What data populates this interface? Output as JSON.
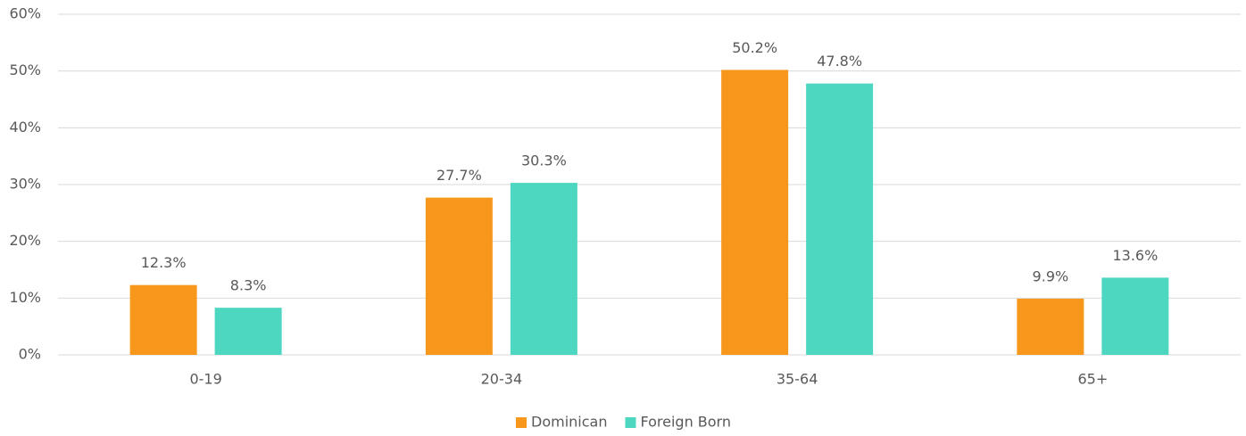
{
  "chart_data": {
    "type": "bar",
    "categories": [
      "0-19",
      "20-34",
      "35-64",
      "65+"
    ],
    "series": [
      {
        "name": "Dominican",
        "color": "#f7981d",
        "values": [
          12.3,
          27.7,
          50.2,
          9.9
        ],
        "value_labels": [
          "12.3%",
          "27.7%",
          "50.2%",
          "9.9%"
        ]
      },
      {
        "name": "Foreign Born",
        "color": "#4dd6c0",
        "values": [
          8.3,
          30.3,
          47.8,
          13.6
        ],
        "value_labels": [
          "8.3%",
          "30.3%",
          "47.8%",
          "13.6%"
        ]
      }
    ],
    "ylim": [
      0,
      60
    ],
    "yticks": [
      {
        "value": 0,
        "label": "0%"
      },
      {
        "value": 10,
        "label": "10%"
      },
      {
        "value": 20,
        "label": "20%"
      },
      {
        "value": 30,
        "label": "30%"
      },
      {
        "value": 40,
        "label": "40%"
      },
      {
        "value": 50,
        "label": "50%"
      },
      {
        "value": 60,
        "label": "60%"
      }
    ],
    "grid": true,
    "legend": "bottom"
  }
}
